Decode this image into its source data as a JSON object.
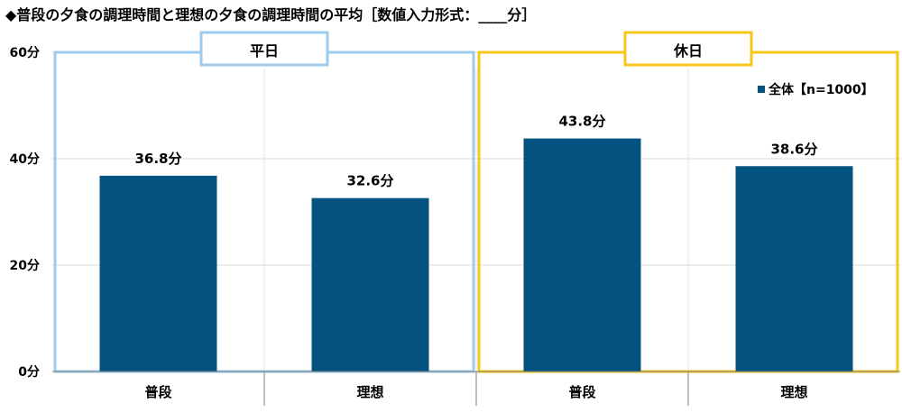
{
  "title": "◆普段の夕食の調理時間と理想の夕食の調理時間の平均［数値入力形式：____分］",
  "colors": {
    "bar": "#03527f",
    "weekday_frame": "#9ccbee",
    "holiday_frame": "#f5c718",
    "grid": "#d9d9d9",
    "axis": "#7f7f7f"
  },
  "chart_data": {
    "type": "bar",
    "unit_suffix": "分",
    "ylim": [
      0,
      60
    ],
    "yticks": [
      0,
      20,
      40,
      60
    ],
    "ytick_labels": [
      "0分",
      "20分",
      "40分",
      "60分"
    ],
    "categories": [
      "普段",
      "理想",
      "普段",
      "理想"
    ],
    "groups": [
      {
        "label": "平日",
        "category_indices": [
          0,
          1
        ]
      },
      {
        "label": "休日",
        "category_indices": [
          2,
          3
        ]
      }
    ],
    "series": [
      {
        "name": "全体【n=1000】",
        "values": [
          36.8,
          32.6,
          43.8,
          38.6
        ],
        "labels": [
          "36.8分",
          "32.6分",
          "43.8分",
          "38.6分"
        ]
      }
    ],
    "legend": {
      "position": "top-right"
    }
  }
}
